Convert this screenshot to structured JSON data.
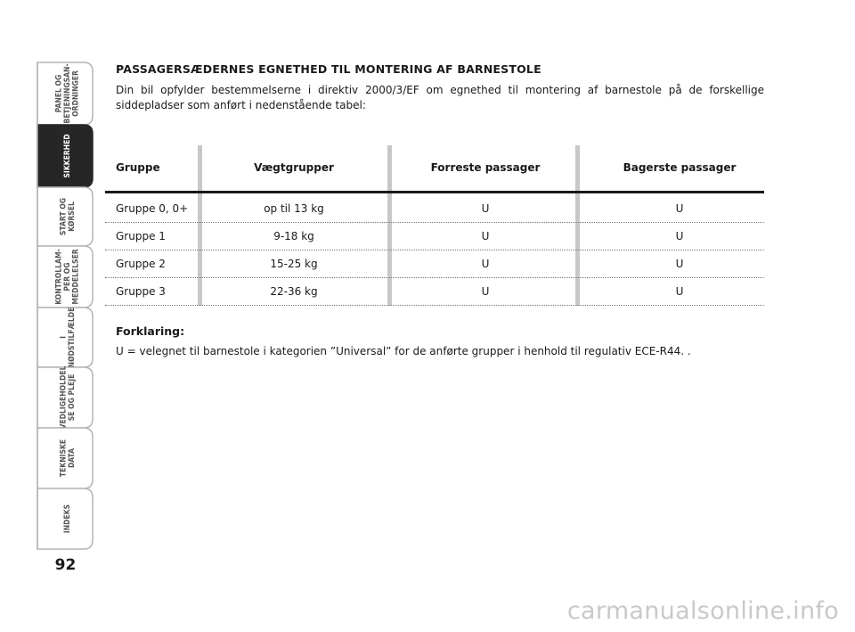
{
  "nav": {
    "tabs": [
      {
        "lines": [
          "PANEL OG",
          "BETJENINGSAN-",
          "ORDNINGER"
        ],
        "active": false
      },
      {
        "lines": [
          "SIKKERHED"
        ],
        "active": true
      },
      {
        "lines": [
          "START OG",
          "KØRSEL"
        ],
        "active": false
      },
      {
        "lines": [
          "KONTROLLAM-",
          "PER OG",
          "MEDDELELSER"
        ],
        "active": false
      },
      {
        "lines": [
          "I",
          "NØDSTILFÆLDE"
        ],
        "active": false
      },
      {
        "lines": [
          "VEDLIGEHOLDEL",
          "SE OG PLEJE"
        ],
        "active": false
      },
      {
        "lines": [
          "TEKNISKE",
          "DATA"
        ],
        "active": false
      },
      {
        "lines": [
          "INDEKS"
        ],
        "active": false
      }
    ],
    "page_number": "92"
  },
  "content": {
    "title": "PASSAGERSÆDERNES EGNETHED TIL MONTERING AF BARNESTOLE",
    "intro": "Din bil opfylder bestemmelserne i direktiv 2000/3/EF om egnethed til montering af barnestole på de forskellige siddepladser som anført i nedenstående tabel:",
    "table": {
      "header": [
        "Gruppe",
        "Vægtgrupper",
        "Forreste passager",
        "Bagerste passager"
      ],
      "rows": [
        [
          "Gruppe 0, 0+",
          "op til 13 kg",
          "U",
          "U"
        ],
        [
          "Gruppe 1",
          "9-18 kg",
          "U",
          "U"
        ],
        [
          "Gruppe 2",
          "15-25 kg",
          "U",
          "U"
        ],
        [
          "Gruppe 3",
          "22-36 kg",
          "U",
          "U"
        ]
      ]
    },
    "legend_title": "Forklaring:",
    "legend_text": "U = velegnet til barnestole i kategorien ”Universal” for de anførte grupper i henhold til regulativ ECE-R44. ."
  },
  "watermark": "carmanualsonline.info"
}
